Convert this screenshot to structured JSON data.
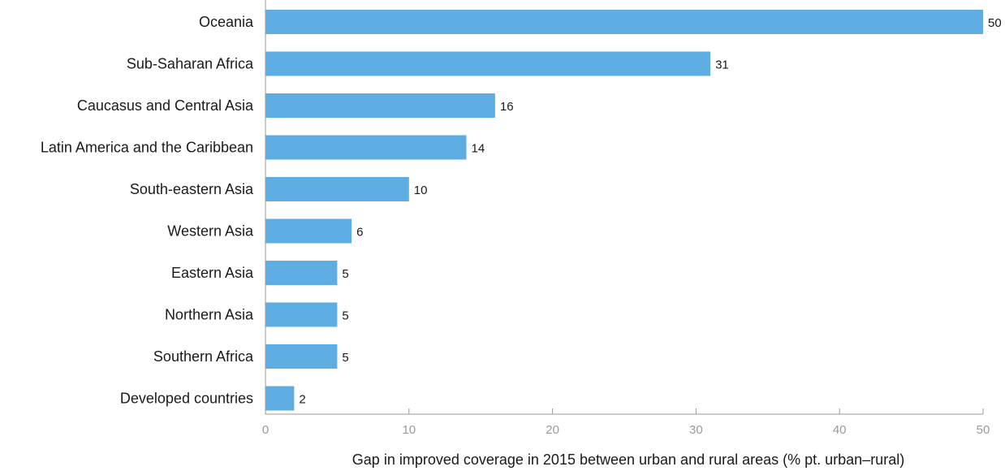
{
  "colors": {
    "bar": "#5dade2",
    "axis_line": "#9a9a9a",
    "tick_text": "#9a9a9a",
    "text": "#1a1a1a"
  },
  "chart_data": {
    "type": "bar",
    "orientation": "horizontal",
    "categories": [
      "Oceania",
      "Sub-Saharan Africa",
      "Caucasus and Central Asia",
      "Latin America and the Caribbean",
      "South-eastern Asia",
      "Western Asia",
      "Eastern Asia",
      "Northern Asia",
      "Southern Africa",
      "Developed countries"
    ],
    "values": [
      50,
      31,
      16,
      14,
      10,
      6,
      5,
      5,
      5,
      2
    ],
    "data_labels": [
      "50",
      "31",
      "16",
      "14",
      "10",
      "6",
      "5",
      "5",
      "5",
      "2"
    ],
    "title": "",
    "xlabel": "Gap in improved coverage in 2015 between urban and rural areas (% pt. urban–rural)",
    "ylabel": "",
    "xlim": [
      0,
      50
    ],
    "xticks": [
      0,
      10,
      20,
      30,
      40,
      50
    ],
    "xtick_labels": [
      "0",
      "10",
      "20",
      "30",
      "40",
      "50"
    ],
    "grid": false,
    "legend": "none"
  }
}
